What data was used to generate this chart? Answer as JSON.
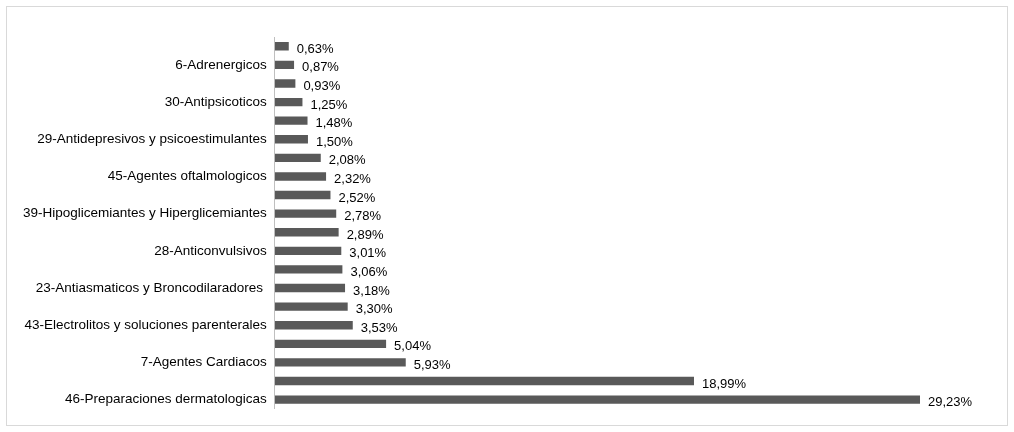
{
  "chart_data": {
    "type": "bar",
    "orientation": "horizontal",
    "categories": [
      null,
      "6-Adrenergicos",
      null,
      "30-Antipsicoticos",
      null,
      "29-Antidepresivos y psicoestimulantes",
      null,
      "45-Agentes oftalmologicos",
      null,
      "39-Hipoglicemiantes y Hiperglicemiantes",
      null,
      "28-Anticonvulsivos",
      null,
      "23-Antiasmaticos y Broncodilaradores ",
      null,
      "43-Electrolitos y soluciones parenterales",
      null,
      "7-Agentes Cardiacos",
      null,
      "46-Preparaciones dermatologicas"
    ],
    "values": [
      0.63,
      0.87,
      0.93,
      1.25,
      1.48,
      1.5,
      2.08,
      2.32,
      2.52,
      2.78,
      2.89,
      3.01,
      3.06,
      3.18,
      3.3,
      3.53,
      5.04,
      5.93,
      18.99,
      29.23
    ],
    "value_labels": [
      "0,63%",
      "0,87%",
      "0,93%",
      "1,25%",
      "1,48%",
      "1,50%",
      "2,08%",
      "2,32%",
      "2,52%",
      "2,78%",
      "2,89%",
      "3,01%",
      "3,06%",
      "3,18%",
      "3,30%",
      "3,53%",
      "5,04%",
      "5,93%",
      "18,99%",
      "29,23%"
    ],
    "color": "#595959",
    "legend": false,
    "tick_labels": "y"
  }
}
